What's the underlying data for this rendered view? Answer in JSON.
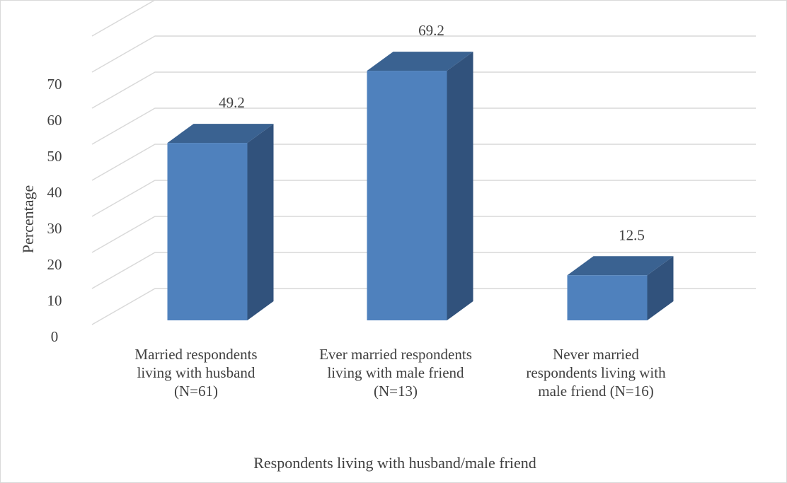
{
  "chart_data": {
    "type": "bar",
    "style": "3d-column",
    "categories": [
      [
        "Married respondents",
        "living with husband",
        "(N=61)"
      ],
      [
        "Ever married respondents",
        "living with male friend",
        "(N=13)"
      ],
      [
        "Never married",
        "respondents living with",
        "male friend (N=16)"
      ]
    ],
    "values": [
      49.2,
      69.2,
      12.5
    ],
    "value_labels": [
      "49.2",
      "69.2",
      "12.5"
    ],
    "y_ticks": [
      "0",
      "10",
      "20",
      "30",
      "40",
      "50",
      "60",
      "70"
    ],
    "ylim": [
      0,
      80
    ],
    "xlabel": "Respondents living with husband/male friend",
    "ylabel": "Percentage",
    "grid": true,
    "legend": false,
    "colors": {
      "bar_front": "#4f81bd",
      "bar_side": "#31527c",
      "bar_top": "#3a6291",
      "grid": "#d9d9d9",
      "text": "#404040"
    }
  }
}
